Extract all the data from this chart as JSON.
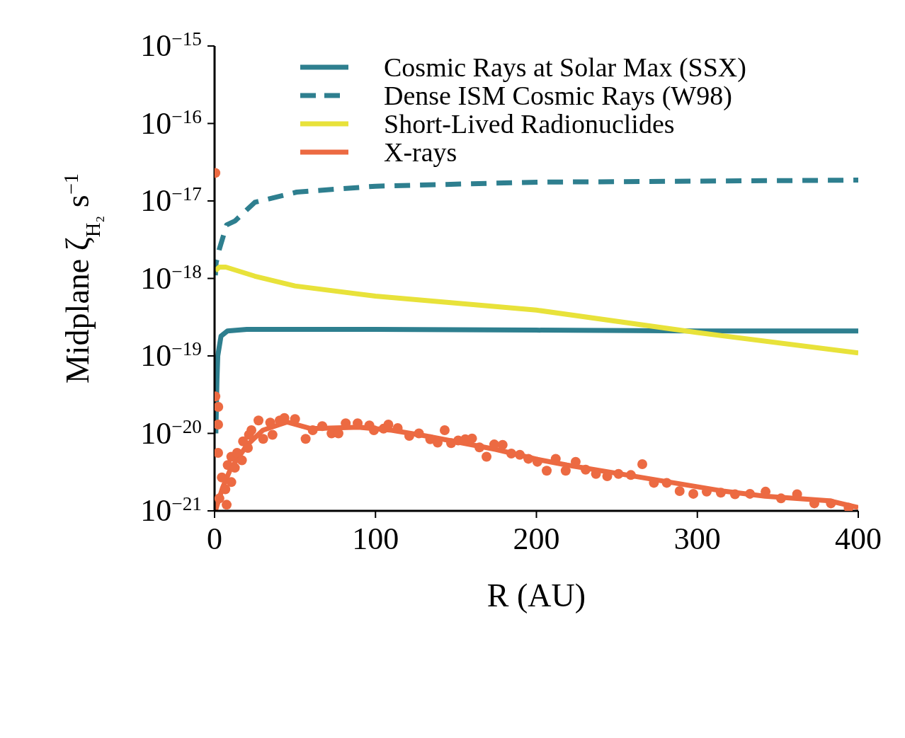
{
  "chart_data": {
    "type": "line",
    "xlabel": "R (AU)",
    "ylabel": "Midplane ζ$_{H₂}$ s$^{−1}$",
    "xlim": [
      0,
      400
    ],
    "xticks": [
      0,
      100,
      200,
      300,
      400
    ],
    "ylim": [
      1e-21,
      1e-15
    ],
    "log": "y",
    "yticks": [
      {
        "value": 1e-21,
        "label": "10$^{−21}$"
      },
      {
        "value": 1e-20,
        "label": "10$^{−20}$"
      },
      {
        "value": 1e-19,
        "label": "10$^{−19}$"
      },
      {
        "value": 1e-18,
        "label": "10$^{−18}$"
      },
      {
        "value": 1e-17,
        "label": "10$^{−17}$"
      },
      {
        "value": 1e-16,
        "label": "10$^{−16}$"
      },
      {
        "value": 1e-15,
        "label": "10$^{−15}$"
      }
    ],
    "legend": "top right",
    "grid": false,
    "series": [
      {
        "name": "Cosmic Rays at Solar Max (SSX)",
        "line_style": "solid",
        "color": "#2e7f8f",
        "x": [
          0.8,
          1.5,
          2,
          4,
          8,
          20,
          100,
          200,
          300,
          400
        ],
        "values": [
          1e-20,
          5e-20,
          1e-19,
          1.8e-19,
          2.1e-19,
          2.2e-19,
          2.2e-19,
          2.15e-19,
          2.1e-19,
          2.1e-19
        ]
      },
      {
        "name": "Dense ISM Cosmic Rays (W98)",
        "line_style": "dashed",
        "color": "#2e7f8f",
        "x": [
          0.5,
          1,
          3,
          7.5,
          12.6,
          25,
          51,
          100,
          201,
          300,
          400
        ],
        "values": [
          1.1e-18,
          1.6e-18,
          2.4e-18,
          4.9e-18,
          5.5e-18,
          9.6e-18,
          1.3e-17,
          1.55e-17,
          1.75e-17,
          1.8e-17,
          1.86e-17
        ]
      },
      {
        "name": "Short-Lived Radionuclides",
        "line_style": "solid",
        "color": "#e8e23a",
        "x": [
          0.5,
          3,
          7,
          25,
          50,
          100,
          200,
          300,
          400
        ],
        "values": [
          1.26e-18,
          1.4e-18,
          1.4e-18,
          1.07e-18,
          8e-19,
          5.9e-19,
          3.9e-19,
          2e-19,
          1.09e-19
        ]
      },
      {
        "name": "X-rays",
        "line_style": "solid",
        "color": "#ec6a42",
        "x": [
          0.5,
          5,
          10,
          20,
          30,
          45,
          60,
          90,
          110,
          131,
          175,
          201,
          219,
          263,
          316,
          342,
          382,
          400
        ],
        "values": [
          1e-21,
          2e-21,
          3.5e-21,
          7e-21,
          1.1e-20,
          1.4e-20,
          1.15e-20,
          1.2e-20,
          1.1e-20,
          9.3e-21,
          6.2e-21,
          4.6e-21,
          3.9e-21,
          2.75e-21,
          1.8e-21,
          1.55e-21,
          1.35e-21,
          1.1e-21
        ]
      },
      {
        "type": "scatter",
        "marker": "circle",
        "color": "#ec6a42",
        "x": [
          0.5,
          0.5,
          2.3,
          2.2,
          2.2,
          3,
          4.5,
          6.7,
          7.5,
          8.2,
          10.4,
          10.4,
          12.6,
          14,
          17,
          17.7,
          20.7,
          21.4,
          22.9,
          27.3,
          30.2,
          34.6,
          36,
          40.5,
          43.4,
          50,
          56.6,
          61,
          66.9,
          72.7,
          77,
          81.5,
          88.9,
          96.2,
          99,
          105,
          108,
          113.8,
          121,
          127,
          134,
          138.6,
          143,
          147,
          151.4,
          155.8,
          160,
          164.6,
          169,
          173.8,
          179,
          184.4,
          189.7,
          195,
          200.6,
          206.4,
          212,
          218.2,
          224.4,
          230.6,
          237,
          244,
          251,
          258.7,
          265.8,
          273,
          281,
          289,
          297.5,
          305.8,
          314.6,
          323.4,
          332.7,
          342.4,
          352,
          362,
          372.7,
          383,
          394
        ],
        "values": [
          2.3e-17,
          3e-20,
          2.2e-20,
          1.3e-20,
          5.6e-21,
          1.45e-21,
          2.7e-21,
          1.9e-21,
          1.2e-21,
          3.9e-21,
          5e-21,
          2.35e-21,
          3.6e-21,
          5.6e-21,
          4.5e-21,
          7.9e-21,
          6.5e-21,
          9.6e-21,
          1.1e-20,
          1.47e-20,
          8.5e-21,
          1.38e-20,
          9.6e-21,
          1.47e-20,
          1.58e-20,
          1.53e-20,
          8.5e-21,
          1.1e-20,
          1.24e-20,
          1e-20,
          1e-20,
          1.35e-20,
          1.35e-20,
          1.27e-20,
          1.1e-20,
          1.15e-20,
          1.3e-20,
          1.17e-20,
          9.3e-21,
          1e-20,
          8.4e-21,
          7.6e-21,
          1.1e-20,
          7.5e-21,
          8.1e-21,
          8.4e-21,
          8.6e-21,
          6.6e-21,
          5e-21,
          7.2e-21,
          7.1e-21,
          5.5e-21,
          5.3e-21,
          4.7e-21,
          4.3e-21,
          3.3e-21,
          4.7e-21,
          3.3e-21,
          4.3e-21,
          3.4e-21,
          3e-21,
          2.8e-21,
          3e-21,
          2.9e-21,
          4e-21,
          2.3e-21,
          2.3e-21,
          1.8e-21,
          1.66e-21,
          1.77e-21,
          1.72e-21,
          1.64e-21,
          1.66e-21,
          1.77e-21,
          1.45e-21,
          1.64e-21,
          1.25e-21,
          1.25e-21,
          1.1e-21
        ]
      }
    ]
  }
}
